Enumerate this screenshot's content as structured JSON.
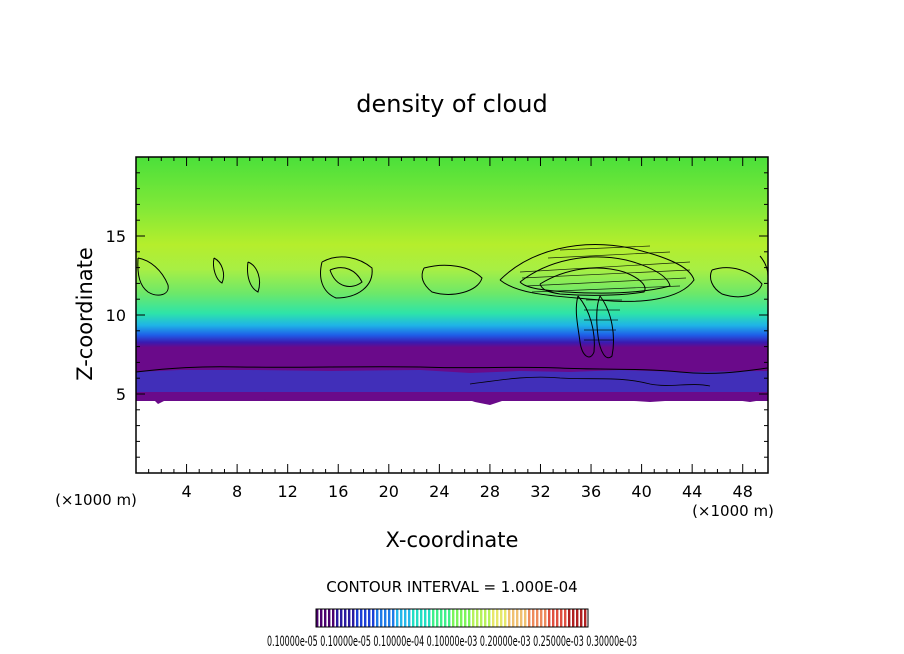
{
  "chart_data": {
    "type": "heatmap",
    "title": "density of cloud",
    "xlabel": "X-coordinate",
    "ylabel": "Z-coordinate",
    "x_unit": "(×1000 m)",
    "x_unit_right": "(×1000 m)",
    "xlim": [
      0,
      50
    ],
    "ylim": [
      0,
      20
    ],
    "xticks": [
      4,
      8,
      12,
      16,
      20,
      24,
      28,
      32,
      36,
      40,
      44,
      48
    ],
    "yticks": [
      5,
      10,
      15
    ],
    "grid": false,
    "contour_interval_label": "CONTOUR INTERVAL = 1.000E-04",
    "colorbar": {
      "colors": [
        "#4b006e",
        "#2a1aa0",
        "#1b3fd6",
        "#1f7be8",
        "#25b8ea",
        "#22dfc4",
        "#3ff08a",
        "#7cf55a",
        "#b7f25a",
        "#e6e86a",
        "#f0c070",
        "#ee8a5c",
        "#e05040",
        "#b02020"
      ],
      "tick_labels_text": "0.10000e-05  0.10000e-05  0.10000e-04  0.10000e-03  0.20000e-03  0.25000e-03  0.30000e-03"
    },
    "field_description_values": {
      "cloud_base_z": 5,
      "cloud_top_z": 20,
      "contour_band_z": [
        10.5,
        14
      ]
    }
  }
}
